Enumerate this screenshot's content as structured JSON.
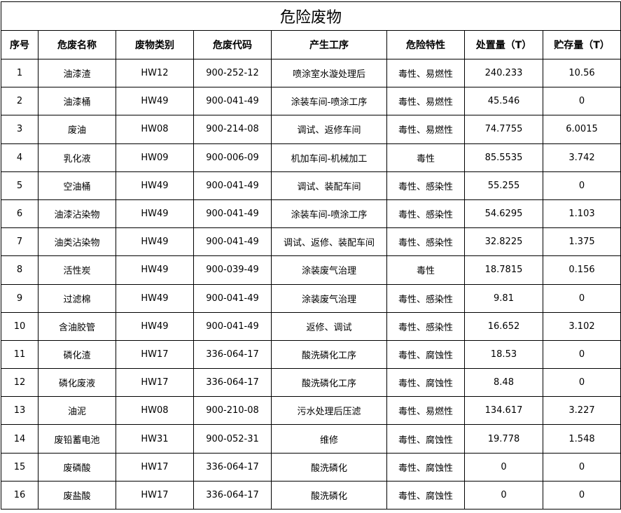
{
  "title": "危险废物",
  "columns": [
    "序号",
    "危废名称",
    "废物类别",
    "危废代码",
    "产生工序",
    "危险特性",
    "处置量（T）",
    "贮存量（T）"
  ],
  "rows": [
    [
      "1",
      "油漆渣",
      "HW12",
      "900-252-12",
      "喷涂室水漩处理后",
      "毒性、易燃性",
      "240.233",
      "10.56"
    ],
    [
      "2",
      "油漆桶",
      "HW49",
      "900-041-49",
      "涂装车间-喷涂工序",
      "毒性、易燃性",
      "45.546",
      "0"
    ],
    [
      "3",
      "废油",
      "HW08",
      "900-214-08",
      "调试、返修车间",
      "毒性、易燃性",
      "74.7755",
      "6.0015"
    ],
    [
      "4",
      "乳化液",
      "HW09",
      "900-006-09",
      "机加车间-机械加工",
      "毒性",
      "85.5535",
      "3.742"
    ],
    [
      "5",
      "空油桶",
      "HW49",
      "900-041-49",
      "调试、装配车间",
      "毒性、感染性",
      "55.255",
      "0"
    ],
    [
      "6",
      "油漆沾染物",
      "HW49",
      "900-041-49",
      "涂装车间-喷涂工序",
      "毒性、感染性",
      "54.6295",
      "1.103"
    ],
    [
      "7",
      "油类沾染物",
      "HW49",
      "900-041-49",
      "调试、返修、装配车间",
      "毒性、感染性",
      "32.8225",
      "1.375"
    ],
    [
      "8",
      "活性炭",
      "HW49",
      "900-039-49",
      "涂装废气治理",
      "毒性",
      "18.7815",
      "0.156"
    ],
    [
      "9",
      "过滤棉",
      "HW49",
      "900-041-49",
      "涂装废气治理",
      "毒性、感染性",
      "9.81",
      "0"
    ],
    [
      "10",
      "含油胶管",
      "HW49",
      "900-041-49",
      "返修、调试",
      "毒性、感染性",
      "16.652",
      "3.102"
    ],
    [
      "11",
      "磷化渣",
      "HW17",
      "336-064-17",
      "酸洗磷化工序",
      "毒性、腐蚀性",
      "18.53",
      "0"
    ],
    [
      "12",
      "磷化废液",
      "HW17",
      "336-064-17",
      "酸洗磷化工序",
      "毒性、腐蚀性",
      "8.48",
      "0"
    ],
    [
      "13",
      "油泥",
      "HW08",
      "900-210-08",
      "污水处理后压滤",
      "毒性、易燃性",
      "134.617",
      "3.227"
    ],
    [
      "14",
      "废铅蓄电池",
      "HW31",
      "900-052-31",
      "维修",
      "毒性、腐蚀性",
      "19.778",
      "1.548"
    ],
    [
      "15",
      "废磷酸",
      "HW17",
      "336-064-17",
      "酸洗磷化",
      "毒性、腐蚀性",
      "0",
      "0"
    ],
    [
      "16",
      "废盐酸",
      "HW17",
      "336-064-17",
      "酸洗磷化",
      "毒性、腐蚀性",
      "0",
      "0"
    ]
  ]
}
